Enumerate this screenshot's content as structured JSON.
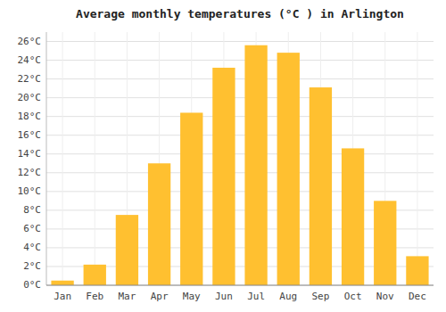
{
  "chart_data": {
    "type": "bar",
    "title": "Average monthly temperatures (°C ) in Arlington",
    "categories": [
      "Jan",
      "Feb",
      "Mar",
      "Apr",
      "May",
      "Jun",
      "Jul",
      "Aug",
      "Sep",
      "Oct",
      "Nov",
      "Dec"
    ],
    "values": [
      0.5,
      2.2,
      7.5,
      13.0,
      18.4,
      23.2,
      25.6,
      24.8,
      21.1,
      14.6,
      9.0,
      3.1
    ],
    "color": "#FFC030",
    "ylim": [
      0,
      27
    ],
    "yticks": [
      {
        "value": 0,
        "label": "0°C"
      },
      {
        "value": 2,
        "label": "2°C"
      },
      {
        "value": 4,
        "label": "4°C"
      },
      {
        "value": 6,
        "label": "6°C"
      },
      {
        "value": 8,
        "label": "8°C"
      },
      {
        "value": 10,
        "label": "10°C"
      },
      {
        "value": 12,
        "label": "12°C"
      },
      {
        "value": 14,
        "label": "14°C"
      },
      {
        "value": 16,
        "label": "16°C"
      },
      {
        "value": 18,
        "label": "18°C"
      },
      {
        "value": 20,
        "label": "20°C"
      },
      {
        "value": 22,
        "label": "22°C"
      },
      {
        "value": 24,
        "label": "24°C"
      },
      {
        "value": 26,
        "label": "26°C"
      }
    ],
    "grid": true
  }
}
